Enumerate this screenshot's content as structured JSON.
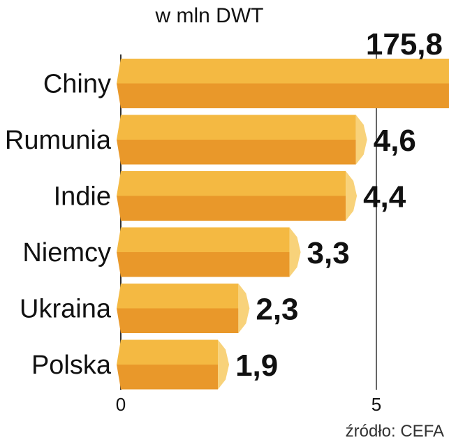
{
  "chart_data": {
    "type": "bar",
    "orientation": "horizontal",
    "unit_label": "w mln DWT",
    "categories": [
      "Chiny",
      "Rumunia",
      "Indie",
      "Niemcy",
      "Ukraina",
      "Polska"
    ],
    "values": [
      175.8,
      4.6,
      4.4,
      3.3,
      2.3,
      1.9
    ],
    "value_labels": [
      "175,8",
      "4,6",
      "4,4",
      "3,3",
      "2,3",
      "1,9"
    ],
    "xlim": [
      0,
      10
    ],
    "xticks": [
      "0",
      "5",
      "10"
    ],
    "axis_break": true,
    "grid": true,
    "legend": "none",
    "source": "źródło: CEFA"
  },
  "colors": {
    "bar_top": "#F4B942",
    "bar_bottom": "#E9982A",
    "bar_cap": "#F8D27A",
    "grid": "#333333"
  }
}
